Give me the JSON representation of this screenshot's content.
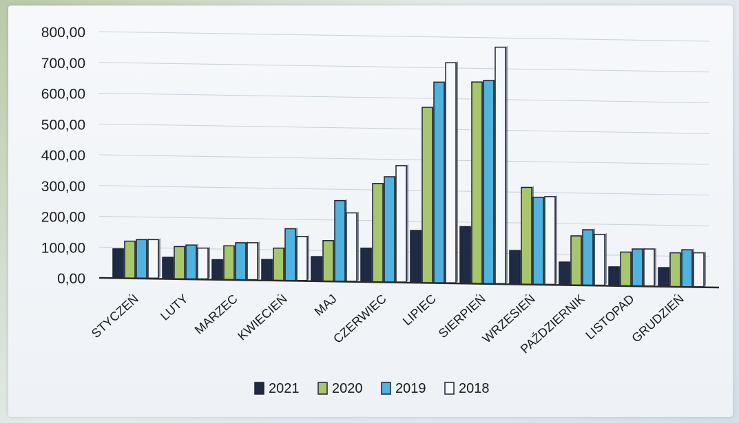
{
  "chart_data": {
    "type": "bar",
    "categories": [
      "STYCZEŃ",
      "LUTY",
      "MARZEC",
      "KWIECIEŃ",
      "MAJ",
      "CZERWIEC",
      "LIPIEC",
      "SIERPIEŃ",
      "WRZESIEŃ",
      "PAŹDZIERNIK",
      "LISTOPAD",
      "GRUDZIEŃ"
    ],
    "series": [
      {
        "name": "2021",
        "color": "#1f2a44",
        "values": [
          95,
          70,
          65,
          68,
          80,
          110,
          170,
          185,
          110,
          75,
          62,
          62
        ]
      },
      {
        "name": "2020",
        "color": "#a8c66c",
        "values": [
          120,
          105,
          110,
          105,
          132,
          320,
          570,
          655,
          315,
          160,
          110,
          110
        ]
      },
      {
        "name": "2019",
        "color": "#4fb3dd",
        "values": [
          125,
          110,
          120,
          168,
          262,
          342,
          652,
          660,
          283,
          180,
          120,
          120
        ]
      },
      {
        "name": "2018",
        "color": "#f4f7fb",
        "values": [
          125,
          100,
          120,
          143,
          222,
          378,
          715,
          768,
          285,
          165,
          120,
          110
        ]
      }
    ],
    "yticks": [
      "0,00",
      "100,00",
      "200,00",
      "300,00",
      "400,00",
      "500,00",
      "600,00",
      "700,00",
      "800,00"
    ],
    "ylim": [
      0,
      800
    ],
    "grid": true,
    "legend_position": "bottom"
  }
}
